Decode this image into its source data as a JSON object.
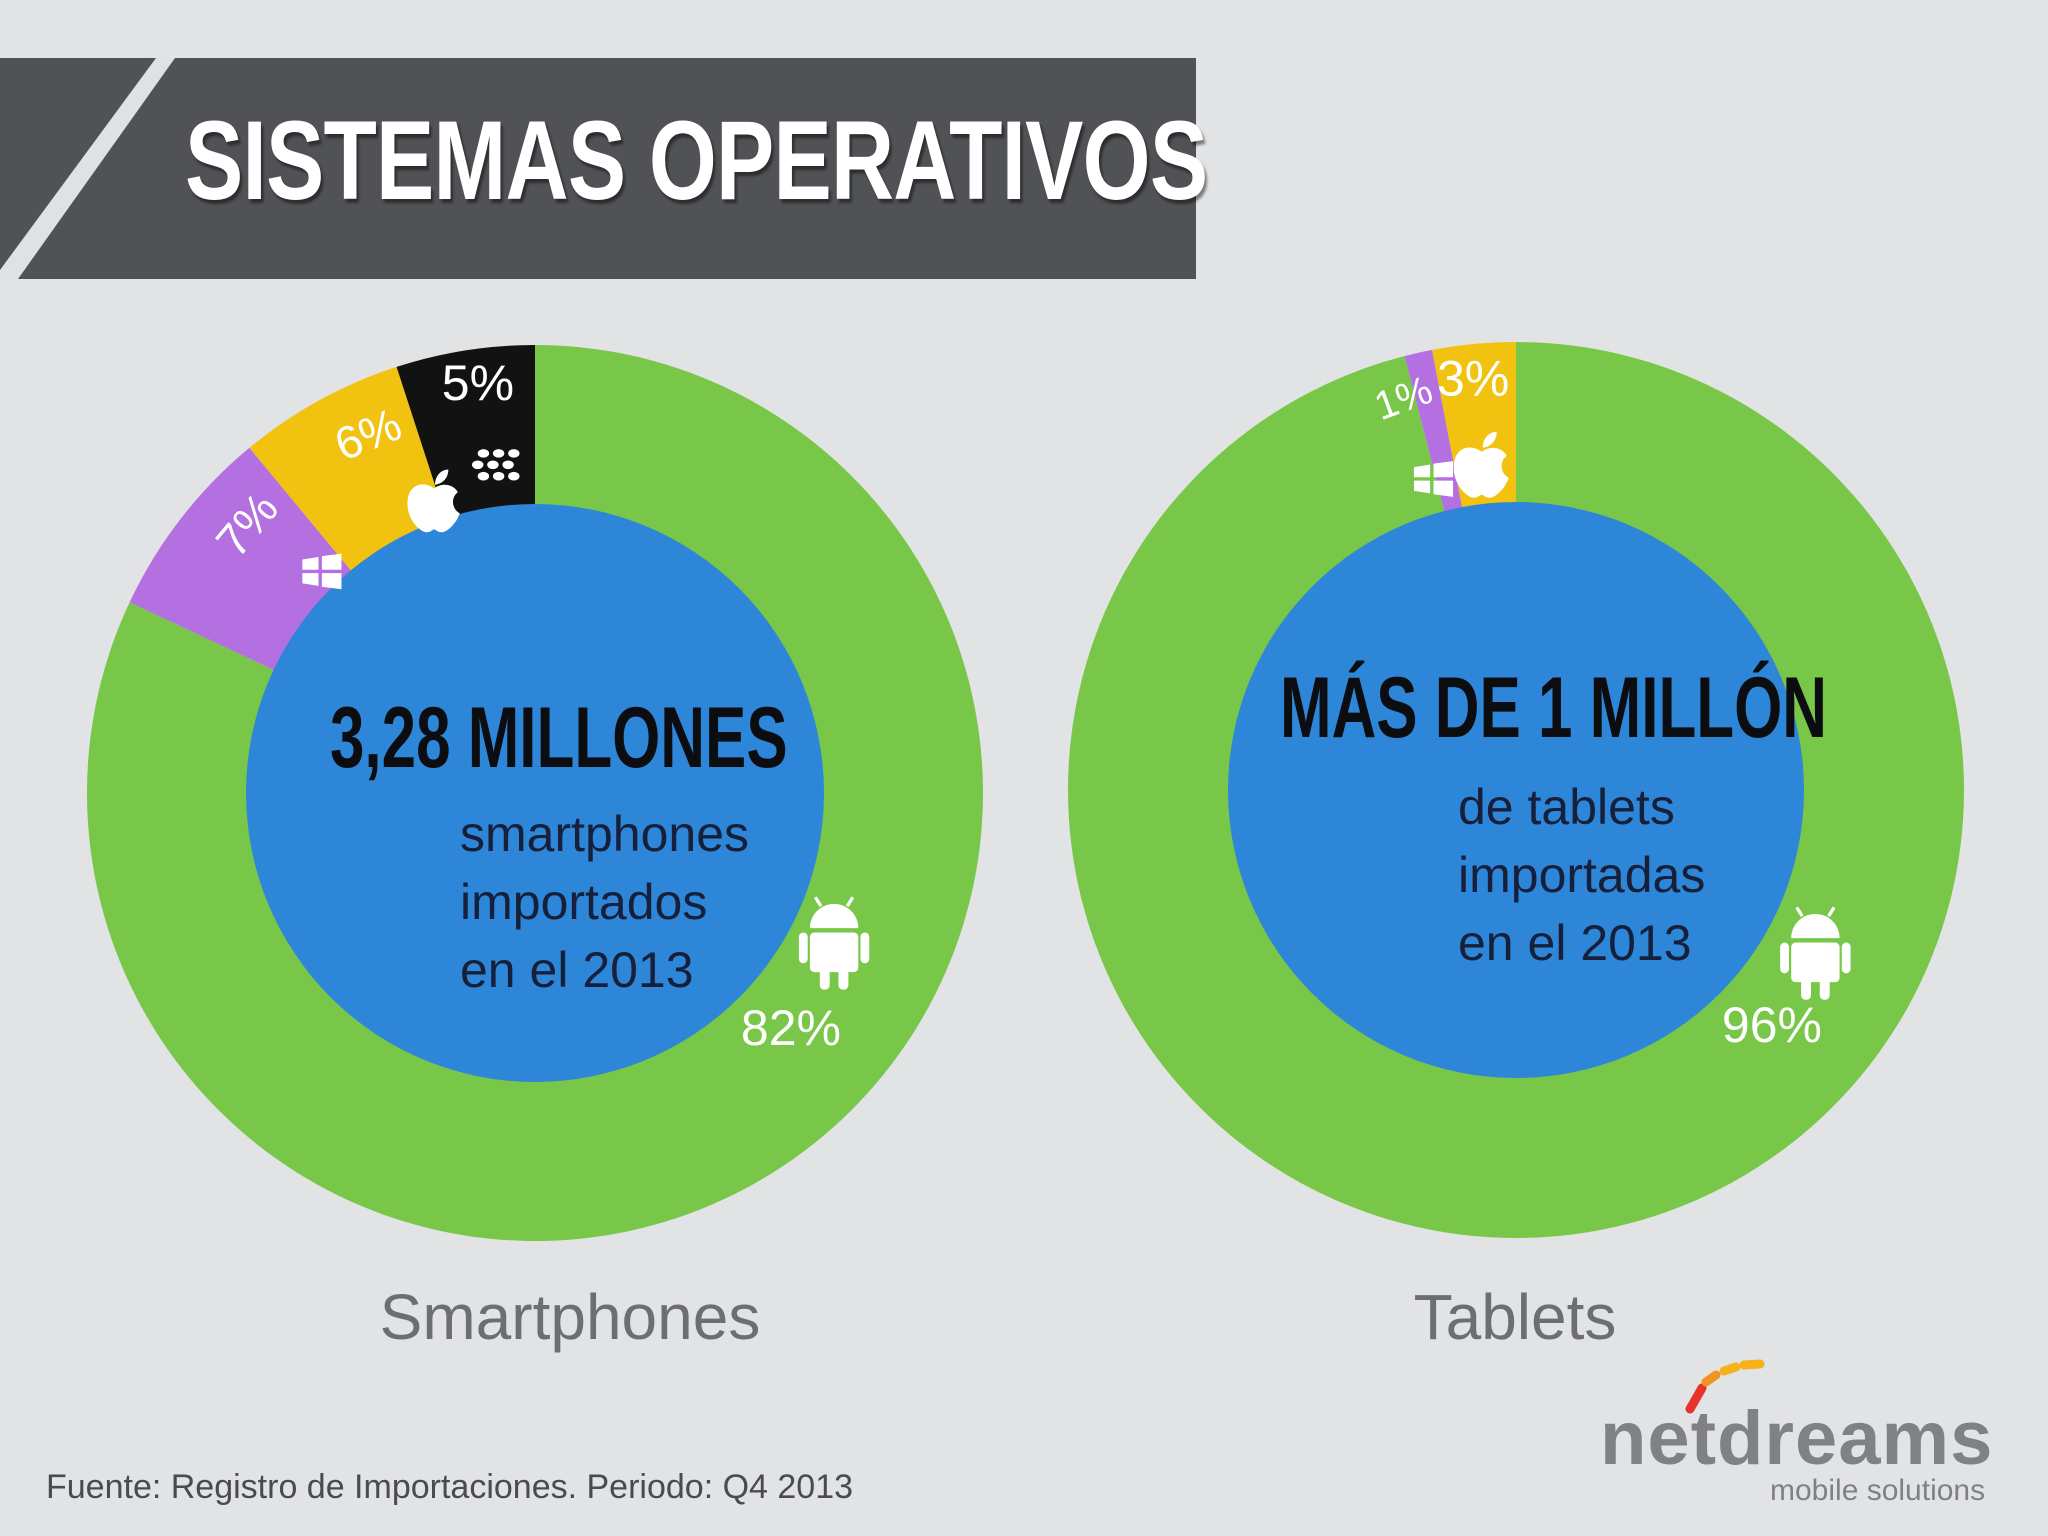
{
  "header": {
    "title": "SISTEMAS OPERATIVOS"
  },
  "colors": {
    "android": "#78c748",
    "windows": "#b46fe1",
    "apple": "#f1c20f",
    "blackberry": "#121212",
    "center": "#2e86d9",
    "banner": "#505256"
  },
  "chart_data": [
    {
      "type": "pie",
      "title": "Smartphones",
      "center_heading": "3,28 MILLONES",
      "center_lines": [
        "smartphones",
        "importados",
        "en el 2013"
      ],
      "slices": [
        {
          "name": "Android",
          "value": 82,
          "label": "82%",
          "icon": "android-icon",
          "color": "#78c748"
        },
        {
          "name": "Windows",
          "value": 7,
          "label": "7%",
          "icon": "windows-icon",
          "color": "#b46fe1"
        },
        {
          "name": "Apple",
          "value": 6,
          "label": "6%",
          "icon": "apple-icon",
          "color": "#f1c20f"
        },
        {
          "name": "BlackBerry",
          "value": 5,
          "label": "5%",
          "icon": "blackberry-icon",
          "color": "#121212"
        }
      ]
    },
    {
      "type": "pie",
      "title": "Tablets",
      "center_heading": "MÁS DE 1 MILLÓN",
      "center_lines": [
        "de tablets",
        "importadas",
        "en el 2013"
      ],
      "slices": [
        {
          "name": "Android",
          "value": 96,
          "label": "96%",
          "icon": "android-icon",
          "color": "#78c748"
        },
        {
          "name": "Windows",
          "value": 1,
          "label": "1%",
          "icon": "windows-icon",
          "color": "#b46fe1"
        },
        {
          "name": "Apple",
          "value": 3,
          "label": "3%",
          "icon": "apple-icon",
          "color": "#f1c20f"
        }
      ]
    }
  ],
  "footer": {
    "source": "Fuente: Registro de Importaciones. Periodo: Q4 2013"
  },
  "brand": {
    "name": "netdreams",
    "tagline": "mobile solutions"
  }
}
